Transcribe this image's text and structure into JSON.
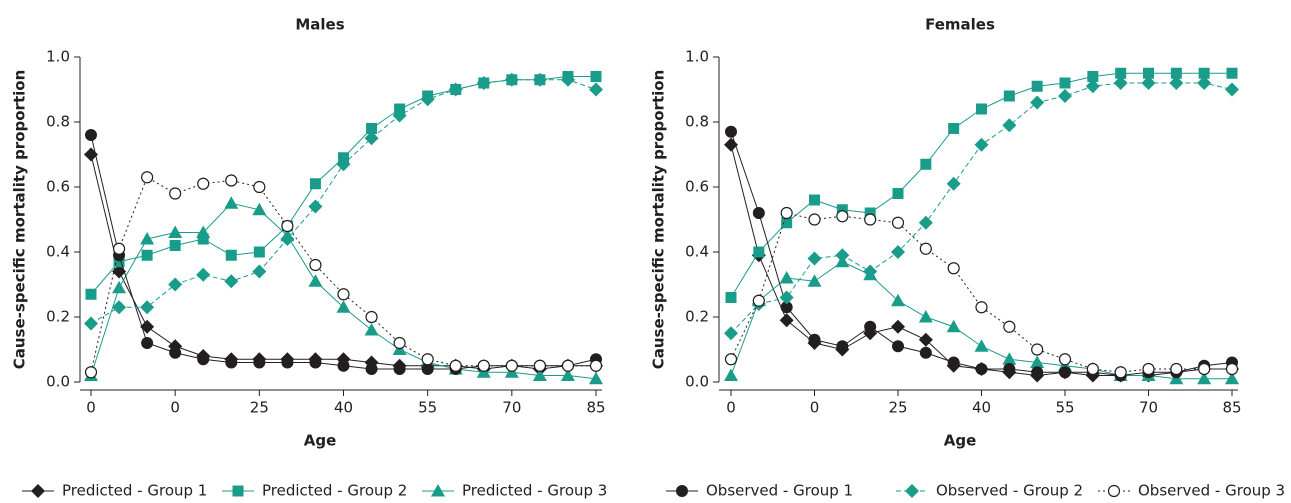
{
  "chart_data": [
    {
      "type": "line",
      "title": "Males",
      "x_label": "Age",
      "y_label": "Cause-specific mortality proportion",
      "categories": [
        "0",
        null,
        null,
        "0",
        null,
        null,
        "25",
        null,
        null,
        "40",
        null,
        null,
        "55",
        null,
        null,
        "70",
        null,
        null,
        "85"
      ],
      "ylim": [
        0,
        1
      ],
      "yticks": [
        {
          "value": 0,
          "label": "0.0"
        },
        {
          "value": 0.2,
          "label": "0.2"
        },
        {
          "value": 0.4,
          "label": "0.4"
        },
        {
          "value": 0.6,
          "label": "0.6"
        },
        {
          "value": 0.8,
          "label": "0.8"
        },
        {
          "value": 1,
          "label": "1.0"
        }
      ],
      "grid": false,
      "series": [
        {
          "name": "Predicted - Group 1",
          "color": "#231f20",
          "marker": "diamond",
          "dash": "solid",
          "values": [
            0.7,
            0.34,
            0.17,
            0.11,
            0.08,
            0.07,
            0.07,
            0.07,
            0.07,
            0.07,
            0.06,
            0.05,
            0.05,
            0.05,
            0.04,
            0.05,
            0.04,
            0.05,
            0.05
          ]
        },
        {
          "name": "Predicted - Group 2",
          "color": "#1a9c8a",
          "marker": "square",
          "dash": "solid",
          "values": [
            0.27,
            0.37,
            0.39,
            0.42,
            0.44,
            0.39,
            0.4,
            0.48,
            0.61,
            0.69,
            0.78,
            0.84,
            0.88,
            0.9,
            0.92,
            0.93,
            0.93,
            0.94,
            0.94
          ]
        },
        {
          "name": "Predicted - Group 3",
          "color": "#1a9c8a",
          "marker": "triangle",
          "dash": "solid",
          "values": [
            0.02,
            0.29,
            0.44,
            0.46,
            0.46,
            0.55,
            0.53,
            0.45,
            0.31,
            0.23,
            0.16,
            0.1,
            0.06,
            0.04,
            0.03,
            0.03,
            0.02,
            0.02,
            0.01
          ]
        },
        {
          "name": "Observed - Group 1",
          "color": "#231f20",
          "marker": "circle",
          "dash": "solid",
          "values": [
            0.76,
            0.39,
            0.12,
            0.09,
            0.07,
            0.06,
            0.06,
            0.06,
            0.06,
            0.05,
            0.04,
            0.04,
            0.04,
            0.04,
            0.05,
            0.05,
            0.05,
            0.05,
            0.07
          ]
        },
        {
          "name": "Observed - Group 2",
          "color": "#1a9c8a",
          "marker": "diamond",
          "dash": "dashed",
          "values": [
            0.18,
            0.23,
            0.23,
            0.3,
            0.33,
            0.31,
            0.34,
            0.44,
            0.54,
            0.67,
            0.75,
            0.82,
            0.87,
            0.9,
            0.92,
            0.93,
            0.93,
            0.93,
            0.9
          ]
        },
        {
          "name": "Observed - Group 3",
          "color": "#231f20",
          "marker": "open-circle",
          "dash": "dotted",
          "values": [
            0.03,
            0.41,
            0.63,
            0.58,
            0.61,
            0.62,
            0.6,
            0.48,
            0.36,
            0.27,
            0.2,
            0.12,
            0.07,
            0.05,
            0.05,
            0.05,
            0.05,
            0.05,
            0.05
          ]
        }
      ]
    },
    {
      "type": "line",
      "title": "Females",
      "x_label": "Age",
      "y_label": "Cause-specific mortality proportion",
      "categories": [
        "0",
        null,
        null,
        "0",
        null,
        null,
        "25",
        null,
        null,
        "40",
        null,
        null,
        "55",
        null,
        null,
        "70",
        null,
        null,
        "85"
      ],
      "ylim": [
        0,
        1
      ],
      "yticks": [
        {
          "value": 0,
          "label": "0.0"
        },
        {
          "value": 0.2,
          "label": "0.2"
        },
        {
          "value": 0.4,
          "label": "0.4"
        },
        {
          "value": 0.6,
          "label": "0.6"
        },
        {
          "value": 0.8,
          "label": "0.8"
        },
        {
          "value": 1,
          "label": "1.0"
        }
      ],
      "grid": false,
      "series": [
        {
          "name": "Predicted - Group 1",
          "color": "#231f20",
          "marker": "diamond",
          "dash": "solid",
          "values": [
            0.73,
            0.39,
            0.19,
            0.12,
            0.1,
            0.15,
            0.17,
            0.13,
            0.05,
            0.04,
            0.03,
            0.02,
            0.03,
            0.02,
            0.02,
            0.02,
            0.03,
            0.04,
            0.04
          ]
        },
        {
          "name": "Predicted - Group 2",
          "color": "#1a9c8a",
          "marker": "square",
          "dash": "solid",
          "values": [
            0.26,
            0.4,
            0.49,
            0.56,
            0.53,
            0.52,
            0.58,
            0.67,
            0.78,
            0.84,
            0.88,
            0.91,
            0.92,
            0.94,
            0.95,
            0.95,
            0.95,
            0.95,
            0.95
          ]
        },
        {
          "name": "Predicted - Group 3",
          "color": "#1a9c8a",
          "marker": "triangle",
          "dash": "solid",
          "values": [
            0.02,
            0.25,
            0.32,
            0.31,
            0.37,
            0.33,
            0.25,
            0.2,
            0.17,
            0.11,
            0.07,
            0.06,
            0.05,
            0.04,
            0.02,
            0.02,
            0.01,
            0.01,
            0.01
          ]
        },
        {
          "name": "Observed - Group 1",
          "color": "#231f20",
          "marker": "circle",
          "dash": "solid",
          "values": [
            0.77,
            0.52,
            0.23,
            0.13,
            0.11,
            0.17,
            0.11,
            0.09,
            0.06,
            0.04,
            0.04,
            0.03,
            0.03,
            0.03,
            0.02,
            0.03,
            0.03,
            0.05,
            0.06
          ]
        },
        {
          "name": "Observed - Group 2",
          "color": "#1a9c8a",
          "marker": "diamond",
          "dash": "dashed",
          "values": [
            0.15,
            0.24,
            0.26,
            0.38,
            0.39,
            0.34,
            0.4,
            0.49,
            0.61,
            0.73,
            0.79,
            0.86,
            0.88,
            0.91,
            0.92,
            0.92,
            0.92,
            0.92,
            0.9
          ]
        },
        {
          "name": "Observed - Group 3",
          "color": "#231f20",
          "marker": "open-circle",
          "dash": "dotted",
          "values": [
            0.07,
            0.25,
            0.52,
            0.5,
            0.51,
            0.5,
            0.49,
            0.41,
            0.35,
            0.23,
            0.17,
            0.1,
            0.07,
            0.04,
            0.03,
            0.04,
            0.04,
            0.04,
            0.04
          ]
        }
      ]
    }
  ]
}
